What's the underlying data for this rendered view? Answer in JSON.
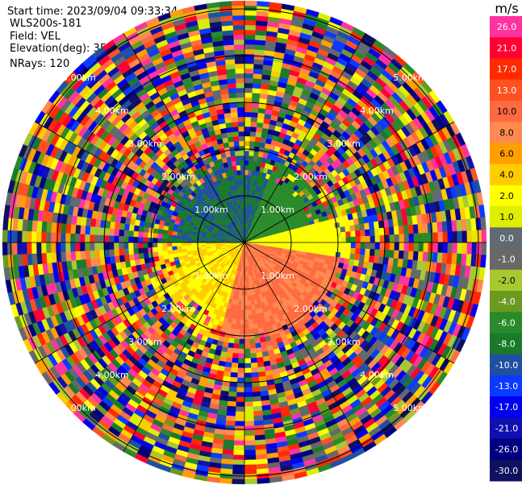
{
  "header": {
    "start_time": "Start time: 2023/09/04 09:33:34",
    "instrument": "WLS200s-181",
    "field": "Field: VEL",
    "elevation": "Elevation(deg): 35.30",
    "nrays": "NRays: 120"
  },
  "chart_data": {
    "type": "heatmap",
    "projection": "polar-ppi",
    "n_rays": 120,
    "elevation_deg": 35.3,
    "field": "VEL",
    "unit": "m/s",
    "range_ring_labels": [
      "1.00km",
      "2.00km",
      "3.00km",
      "4.00km",
      "5.00km"
    ],
    "range_rings_km": [
      1,
      2,
      3,
      4,
      5
    ],
    "label_directions": [
      "NW",
      "NE",
      "SW",
      "SE"
    ],
    "colorbar": {
      "label": "m/s",
      "ticks": [
        "26.0",
        "21.0",
        "17.0",
        "13.0",
        "10.0",
        "8.0",
        "6.0",
        "4.0",
        "2.0",
        "1.0",
        "0.0",
        "-1.0",
        "-2.0",
        "-4.0",
        "-6.0",
        "-8.0",
        "-10.0",
        "-13.0",
        "-17.0",
        "-21.0",
        "-26.0",
        "-30.0"
      ],
      "colors": [
        "#ff33a0",
        "#ff0033",
        "#ff2a00",
        "#ff5020",
        "#ff6a40",
        "#ff8a50",
        "#ffa000",
        "#ffcc00",
        "#ffff00",
        "#ddee00",
        "#606a70",
        "#686868",
        "#a8c832",
        "#6a9a20",
        "#2a8a2a",
        "#1a7a2a",
        "#2050a0",
        "#0a3aff",
        "#0000ee",
        "#1010b0",
        "#000080",
        "#101060"
      ]
    },
    "near_field_pattern": [
      {
        "sector": "north-west",
        "direction": "away",
        "value_range": [
          -10.0,
          -6.0
        ]
      },
      {
        "sector": "north-east",
        "direction": "away",
        "value_range": [
          -6.0,
          -4.0
        ]
      },
      {
        "sector": "south-east",
        "direction": "toward",
        "value_range": [
          8.0,
          13.0
        ]
      },
      {
        "sector": "south-west",
        "direction": "toward",
        "value_range": [
          2.0,
          6.0
        ]
      },
      {
        "sector": "east",
        "direction": "toward",
        "value_range": [
          2.0,
          4.0
        ]
      }
    ],
    "far_field": "noise"
  }
}
